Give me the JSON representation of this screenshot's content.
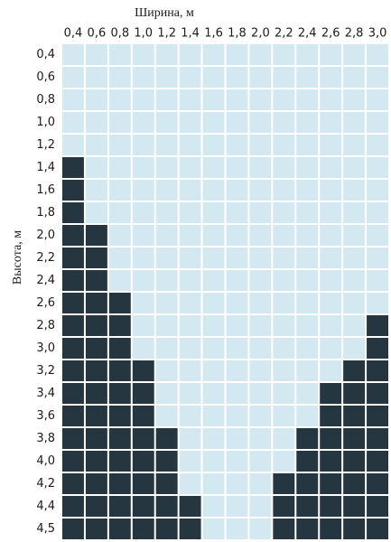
{
  "x_title": "Ширина, м",
  "y_title": "Высота, м",
  "columns": [
    "0,4",
    "0,6",
    "0,8",
    "1,0",
    "1,2",
    "1,4",
    "1,6",
    "1,8",
    "2,0",
    "2,2",
    "2,4",
    "2,6",
    "2,8",
    "3,0"
  ],
  "colors": {
    "on": "#253640",
    "off": "#d3e8f0"
  },
  "rows": [
    {
      "label": "0,4",
      "cells": [
        false,
        false,
        false,
        false,
        false,
        false,
        false,
        false,
        false,
        false,
        false,
        false,
        false,
        false
      ]
    },
    {
      "label": "0,6",
      "cells": [
        false,
        false,
        false,
        false,
        false,
        false,
        false,
        false,
        false,
        false,
        false,
        false,
        false,
        false
      ]
    },
    {
      "label": "0,8",
      "cells": [
        false,
        false,
        false,
        false,
        false,
        false,
        false,
        false,
        false,
        false,
        false,
        false,
        false,
        false
      ]
    },
    {
      "label": "1,0",
      "cells": [
        false,
        false,
        false,
        false,
        false,
        false,
        false,
        false,
        false,
        false,
        false,
        false,
        false,
        false
      ]
    },
    {
      "label": "1,2",
      "cells": [
        false,
        false,
        false,
        false,
        false,
        false,
        false,
        false,
        false,
        false,
        false,
        false,
        false,
        false
      ]
    },
    {
      "label": "1,4",
      "cells": [
        true,
        false,
        false,
        false,
        false,
        false,
        false,
        false,
        false,
        false,
        false,
        false,
        false,
        false
      ]
    },
    {
      "label": "1,6",
      "cells": [
        true,
        false,
        false,
        false,
        false,
        false,
        false,
        false,
        false,
        false,
        false,
        false,
        false,
        false
      ]
    },
    {
      "label": "1,8",
      "cells": [
        true,
        false,
        false,
        false,
        false,
        false,
        false,
        false,
        false,
        false,
        false,
        false,
        false,
        false
      ]
    },
    {
      "label": "2,0",
      "cells": [
        true,
        true,
        false,
        false,
        false,
        false,
        false,
        false,
        false,
        false,
        false,
        false,
        false,
        false
      ]
    },
    {
      "label": "2,2",
      "cells": [
        true,
        true,
        false,
        false,
        false,
        false,
        false,
        false,
        false,
        false,
        false,
        false,
        false,
        false
      ]
    },
    {
      "label": "2,4",
      "cells": [
        true,
        true,
        false,
        false,
        false,
        false,
        false,
        false,
        false,
        false,
        false,
        false,
        false,
        false
      ]
    },
    {
      "label": "2,6",
      "cells": [
        true,
        true,
        true,
        false,
        false,
        false,
        false,
        false,
        false,
        false,
        false,
        false,
        false,
        false
      ]
    },
    {
      "label": "2,8",
      "cells": [
        true,
        true,
        true,
        false,
        false,
        false,
        false,
        false,
        false,
        false,
        false,
        false,
        false,
        true
      ]
    },
    {
      "label": "3,0",
      "cells": [
        true,
        true,
        true,
        false,
        false,
        false,
        false,
        false,
        false,
        false,
        false,
        false,
        false,
        true
      ]
    },
    {
      "label": "3,2",
      "cells": [
        true,
        true,
        true,
        true,
        false,
        false,
        false,
        false,
        false,
        false,
        false,
        false,
        true,
        true
      ]
    },
    {
      "label": "3,4",
      "cells": [
        true,
        true,
        true,
        true,
        false,
        false,
        false,
        false,
        false,
        false,
        false,
        true,
        true,
        true
      ]
    },
    {
      "label": "3,6",
      "cells": [
        true,
        true,
        true,
        true,
        false,
        false,
        false,
        false,
        false,
        false,
        false,
        true,
        true,
        true
      ]
    },
    {
      "label": "3,8",
      "cells": [
        true,
        true,
        true,
        true,
        true,
        false,
        false,
        false,
        false,
        false,
        true,
        true,
        true,
        true
      ]
    },
    {
      "label": "4,0",
      "cells": [
        true,
        true,
        true,
        true,
        true,
        false,
        false,
        false,
        false,
        false,
        true,
        true,
        true,
        true
      ]
    },
    {
      "label": "4,2",
      "cells": [
        true,
        true,
        true,
        true,
        true,
        false,
        false,
        false,
        false,
        true,
        true,
        true,
        true,
        true
      ]
    },
    {
      "label": "4,4",
      "cells": [
        true,
        true,
        true,
        true,
        true,
        true,
        false,
        false,
        false,
        true,
        true,
        true,
        true,
        true
      ]
    },
    {
      "label": "4,5",
      "cells": [
        true,
        true,
        true,
        true,
        true,
        true,
        false,
        false,
        false,
        true,
        true,
        true,
        true,
        true
      ]
    }
  ]
}
